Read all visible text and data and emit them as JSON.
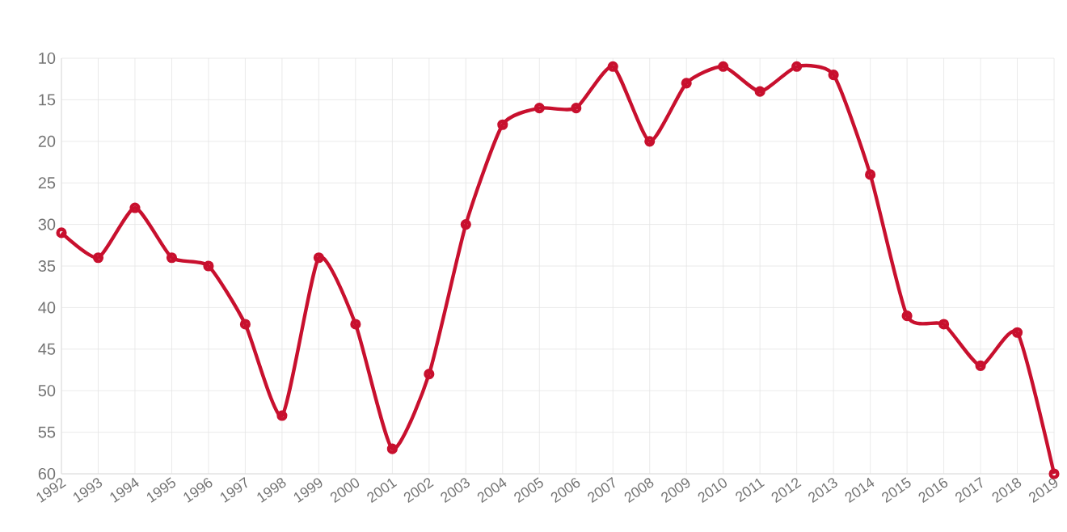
{
  "chart_data": {
    "type": "line",
    "categories": [
      "1992",
      "1993",
      "1994",
      "1995",
      "1996",
      "1997",
      "1998",
      "1999",
      "2000",
      "2001",
      "2002",
      "2003",
      "2004",
      "2005",
      "2006",
      "2007",
      "2008",
      "2009",
      "2010",
      "2011",
      "2012",
      "2013",
      "2014",
      "2015",
      "2016",
      "2017",
      "2018",
      "2019"
    ],
    "series": [
      {
        "color": "#c8102e",
        "values": [
          31,
          34,
          28,
          34,
          35,
          42,
          53,
          34,
          42,
          57,
          48,
          30,
          18,
          16,
          16,
          11,
          20,
          13,
          11,
          14,
          11,
          12,
          24,
          41,
          42,
          47,
          43,
          60
        ]
      }
    ],
    "ylim": [
      60,
      10
    ],
    "yticks": [
      10,
      15,
      20,
      25,
      30,
      35,
      40,
      45,
      50,
      55,
      60
    ],
    "grid": true,
    "marker": "circle"
  }
}
